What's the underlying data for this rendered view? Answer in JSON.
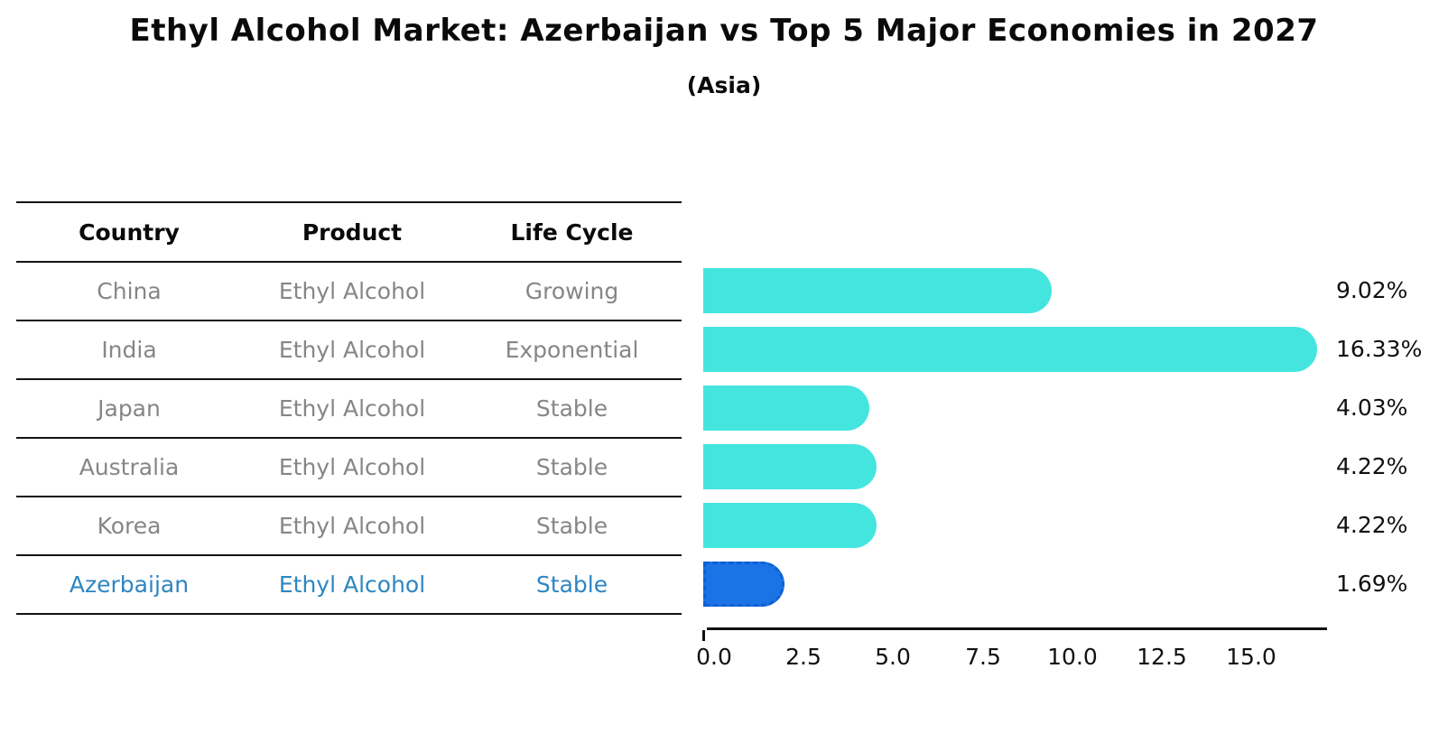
{
  "title": "Ethyl Alcohol Market: Azerbaijan vs Top 5 Major Economies in 2027",
  "subtitle": "(Asia)",
  "table": {
    "headers": {
      "country": "Country",
      "product": "Product",
      "life_cycle": "Life Cycle"
    },
    "rows": [
      {
        "country": "China",
        "product": "Ethyl Alcohol",
        "life_cycle": "Growing"
      },
      {
        "country": "India",
        "product": "Ethyl Alcohol",
        "life_cycle": "Exponential"
      },
      {
        "country": "Japan",
        "product": "Ethyl Alcohol",
        "life_cycle": "Stable"
      },
      {
        "country": "Australia",
        "product": "Ethyl Alcohol",
        "life_cycle": "Stable"
      },
      {
        "country": "Korea",
        "product": "Ethyl Alcohol",
        "life_cycle": "Stable"
      },
      {
        "country": "Azerbaijan",
        "product": "Ethyl Alcohol",
        "life_cycle": "Stable"
      }
    ]
  },
  "chart_data": {
    "type": "bar",
    "orientation": "horizontal",
    "title": "Ethyl Alcohol Market: Azerbaijan vs Top 5 Major Economies in 2027",
    "subtitle": "(Asia)",
    "categories": [
      "China",
      "India",
      "Japan",
      "Australia",
      "Korea",
      "Azerbaijan"
    ],
    "values": [
      9.02,
      16.33,
      4.03,
      4.22,
      4.22,
      1.69
    ],
    "value_labels": [
      "9.02%",
      "16.33%",
      "4.03%",
      "4.22%",
      "4.22%",
      "1.69%"
    ],
    "x_ticks": [
      "0.0",
      "2.5",
      "5.0",
      "7.5",
      "10.0",
      "12.5",
      "15.0"
    ],
    "xlim": [
      0,
      16.6
    ],
    "grid": false,
    "legend": "none",
    "highlight_index": 5
  },
  "colors": {
    "bar": "#45e5df",
    "highlight_bar": "#1b74e5",
    "highlight_border": "#0f5fd6",
    "highlight_text": "#2e86c1",
    "table_text": "#868686",
    "text": "#111111"
  }
}
